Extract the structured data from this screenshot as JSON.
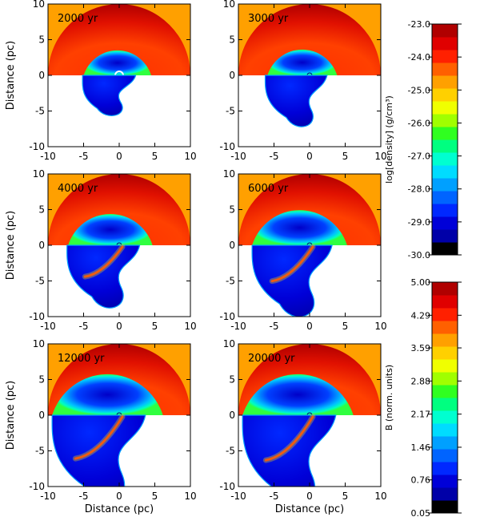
{
  "chart_data": {
    "type": "heatmap",
    "figure": "Density and magnetic field maps of an expanding remnant at six epochs",
    "panels": [
      {
        "time_label": "2000 yr",
        "shape": "circle",
        "shell_outer_r": 6.4,
        "lower_outer_r": 6.6,
        "lower_stretch": 1.0,
        "tail_len": 0,
        "filament": false
      },
      {
        "time_label": "3000 yr",
        "shape": "bean",
        "shell_outer_r": 6.6,
        "lower_outer_r": 7.0,
        "lower_stretch": 1.2,
        "tail_len": 0,
        "filament": false
      },
      {
        "time_label": "4000 yr",
        "shape": "bean",
        "shell_outer_r": 8.0,
        "lower_outer_r": 8.2,
        "lower_stretch": 1.25,
        "tail_len": 4,
        "filament": true
      },
      {
        "time_label": "6000 yr",
        "shape": "bean",
        "shell_outer_r": 9.0,
        "lower_outer_r": 9.0,
        "lower_stretch": 1.3,
        "tail_len": 6,
        "filament": true
      },
      {
        "time_label": "12000 yr",
        "shape": "bean",
        "shell_outer_r": 10.5,
        "lower_outer_r": 10.5,
        "lower_stretch": 1.35,
        "tail_len": 7,
        "filament": true
      },
      {
        "time_label": "20000 yr",
        "shape": "bean",
        "shell_outer_r": 10.5,
        "lower_outer_r": 10.5,
        "lower_stretch": 1.4,
        "tail_len": 9,
        "filament": true
      }
    ],
    "x_axis": {
      "label": "Distance (pc)",
      "range": [
        -10,
        10
      ],
      "ticks": [
        "-10",
        "-5",
        "0",
        "5",
        "10"
      ]
    },
    "y_axis": {
      "label": "Distance (pc)",
      "range": [
        -10,
        10
      ],
      "ticks": [
        "-10",
        "-5",
        "0",
        "5",
        "10"
      ]
    },
    "colorbars": [
      {
        "title": "log[density] (g/cm³)",
        "range": [
          -30.0,
          -23.0
        ],
        "tick_values": [
          -23.0,
          -24.0,
          -25.0,
          -26.0,
          -27.0,
          -28.0,
          -29.0,
          -30.0
        ],
        "tick_labels": [
          "-23.0",
          "-24.0",
          "-25.0",
          "-26.0",
          "-27.0",
          "-28.0",
          "-29.0",
          "-30.0"
        ]
      },
      {
        "title": "B (norm. units)",
        "range": [
          0.05,
          5.0
        ],
        "tick_values": [
          5.0,
          4.29,
          3.59,
          2.88,
          2.17,
          1.46,
          0.76,
          0.05
        ],
        "tick_labels": [
          "5.00",
          "4.29",
          "3.59",
          "2.88",
          "2.17",
          "1.46",
          "0.76",
          "0.05"
        ]
      }
    ],
    "colormap": [
      "#000000",
      "#0000a8",
      "#0000d8",
      "#0028ff",
      "#0064ff",
      "#00a0ff",
      "#00dcff",
      "#00ffd0",
      "#00ff80",
      "#30ff20",
      "#a0ff00",
      "#f0ff00",
      "#ffd000",
      "#ffa000",
      "#ff6000",
      "#ff2000",
      "#e00000",
      "#b00000"
    ],
    "layout_note": "upper half of each panel shows density, lower half shows magnetic field"
  }
}
